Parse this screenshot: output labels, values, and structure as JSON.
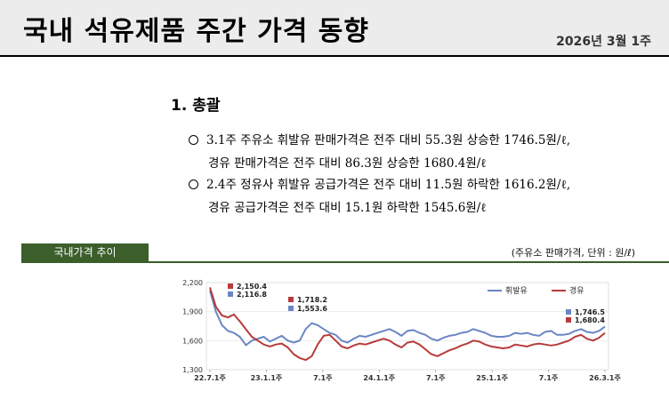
{
  "header": {
    "title": "국내 석유제품 주간 가격 동향",
    "date": "2026년 3월 1주"
  },
  "section": {
    "title": "1. 총괄"
  },
  "bullets": [
    {
      "line1": "3.1주 주유소 휘발유 판매가격은 전주 대비 55.3원 상승한 1746.5원/ℓ,",
      "line2": "경유 판매가격은 전주 대비 86.3원 상승한 1680.4원/ℓ"
    },
    {
      "line1": "2.4주 정유사 휘발유 공급가격은 전주 대비 11.5원 하락한 1616.2원/ℓ,",
      "line2": "경유 공급가격은 전주 대비 15.1원 하락한 1545.6원/ℓ"
    }
  ],
  "chart_section": {
    "label": "국내가격 추이",
    "unit_note": "(주유소 판매가격, 단위 : 원/ℓ)"
  },
  "colors": {
    "gasoline": "#6b86c4",
    "diesel": "#b83a3a",
    "tab": "#3b5e2b"
  },
  "chart_data": {
    "type": "line",
    "ylim": [
      1300,
      2200
    ],
    "yticks": [
      "2,200",
      "1,900",
      "1,600",
      "1,300"
    ],
    "xtick_labels": [
      "22.7.1주",
      "23.1.1주",
      "7.1주",
      "24.1.1주",
      "7.1주",
      "25.1.1주",
      "7.1주",
      "26.3.1주"
    ],
    "legend": [
      "휘발유",
      "경유"
    ],
    "annotations": [
      {
        "series": "diesel",
        "text": "2,150.4"
      },
      {
        "series": "gasoline",
        "text": "2,116.8"
      },
      {
        "series": "diesel",
        "text": "1,718.2"
      },
      {
        "series": "gasoline",
        "text": "1,553.6"
      },
      {
        "series": "gasoline",
        "text": "1,746.5"
      },
      {
        "series": "diesel",
        "text": "1,680.4"
      }
    ],
    "series": [
      {
        "name": "휘발유",
        "key": "gasoline",
        "values": [
          2116.8,
          1900,
          1760,
          1700,
          1680,
          1640,
          1553.6,
          1600,
          1620,
          1640,
          1590,
          1620,
          1650,
          1600,
          1580,
          1600,
          1720,
          1780,
          1760,
          1720,
          1680,
          1660,
          1600,
          1580,
          1620,
          1650,
          1640,
          1660,
          1680,
          1700,
          1720,
          1690,
          1650,
          1700,
          1710,
          1680,
          1660,
          1620,
          1600,
          1630,
          1650,
          1660,
          1680,
          1690,
          1720,
          1700,
          1680,
          1650,
          1640,
          1640,
          1650,
          1680,
          1670,
          1680,
          1660,
          1650,
          1690,
          1700,
          1660,
          1660,
          1670,
          1700,
          1720,
          1690,
          1680,
          1700,
          1746.5
        ]
      },
      {
        "name": "경유",
        "key": "diesel",
        "values": [
          2150.4,
          1950,
          1860,
          1840,
          1870,
          1800,
          1718.2,
          1640,
          1600,
          1560,
          1540,
          1560,
          1570,
          1530,
          1460,
          1420,
          1400,
          1440,
          1560,
          1650,
          1660,
          1600,
          1540,
          1520,
          1550,
          1570,
          1560,
          1580,
          1600,
          1620,
          1600,
          1560,
          1530,
          1580,
          1590,
          1560,
          1510,
          1460,
          1440,
          1470,
          1500,
          1520,
          1550,
          1570,
          1600,
          1590,
          1560,
          1540,
          1530,
          1520,
          1530,
          1560,
          1550,
          1540,
          1560,
          1570,
          1560,
          1550,
          1560,
          1580,
          1600,
          1640,
          1660,
          1620,
          1600,
          1630,
          1680.4
        ]
      }
    ]
  }
}
